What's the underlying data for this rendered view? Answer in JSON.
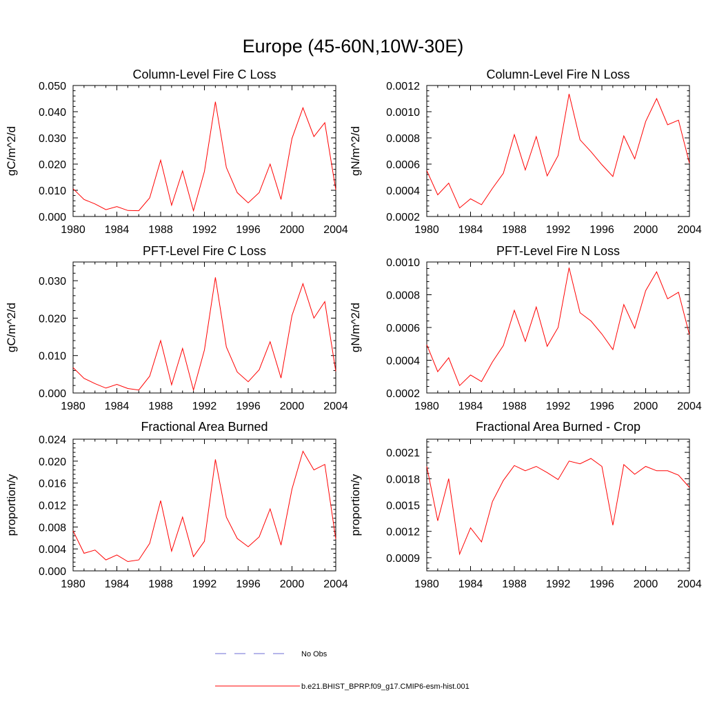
{
  "figure": {
    "title": "Europe (45-60N,10W-30E)"
  },
  "colors": {
    "series": "#ff0000",
    "obs": "#6b6bd6",
    "axis": "#000000"
  },
  "legend": {
    "obs_label": "No Obs",
    "model_label": "b.e21.BHIST_BPRP.f09_g17.CMIP6-esm-hist.001"
  },
  "chart_data": [
    {
      "type": "line",
      "title": "Column-Level Fire C Loss",
      "ylabel": "gC/m^2/d",
      "xlim": [
        1980,
        2004
      ],
      "ylim": [
        0.0,
        0.05
      ],
      "xticks": [
        1980,
        1984,
        1988,
        1992,
        1996,
        2000,
        2004
      ],
      "xtick_labels": [
        "1980",
        "1984",
        "1988",
        "1992",
        "1996",
        "2000",
        "2004"
      ],
      "yticks": [
        0.0,
        0.01,
        0.02,
        0.03,
        0.04,
        0.05
      ],
      "ytick_labels": [
        "0.000",
        "0.010",
        "0.020",
        "0.030",
        "0.040",
        "0.050"
      ],
      "x": [
        1980,
        1981,
        1982,
        1983,
        1984,
        1985,
        1986,
        1987,
        1988,
        1989,
        1990,
        1991,
        1992,
        1993,
        1994,
        1995,
        1996,
        1997,
        1998,
        1999,
        2000,
        2001,
        2002,
        2003,
        2004
      ],
      "series": [
        {
          "name": "b.e21.BHIST_BPRP.f09_g17.CMIP6-esm-hist.001",
          "values": [
            0.0106,
            0.0065,
            0.0048,
            0.0026,
            0.0038,
            0.0023,
            0.0022,
            0.0071,
            0.0215,
            0.0043,
            0.0174,
            0.0022,
            0.0172,
            0.0438,
            0.0187,
            0.0091,
            0.0052,
            0.0091,
            0.02,
            0.0065,
            0.0298,
            0.0415,
            0.0305,
            0.0358,
            0.0102
          ]
        }
      ]
    },
    {
      "type": "line",
      "title": "Column-Level Fire N Loss",
      "ylabel": "gN/m^2/d",
      "xlim": [
        1980,
        2004
      ],
      "ylim": [
        0.0002,
        0.0012
      ],
      "xticks": [
        1980,
        1984,
        1988,
        1992,
        1996,
        2000,
        2004
      ],
      "xtick_labels": [
        "1980",
        "1984",
        "1988",
        "1992",
        "1996",
        "2000",
        "2004"
      ],
      "yticks": [
        0.0002,
        0.0004,
        0.0006,
        0.0008,
        0.001,
        0.0012
      ],
      "ytick_labels": [
        "0.0002",
        "0.0004",
        "0.0006",
        "0.0008",
        "0.0010",
        "0.0012"
      ],
      "x": [
        1980,
        1981,
        1982,
        1983,
        1984,
        1985,
        1986,
        1987,
        1988,
        1989,
        1990,
        1991,
        1992,
        1993,
        1994,
        1995,
        1996,
        1997,
        1998,
        1999,
        2000,
        2004,
        2001,
        2002,
        2003
      ],
      "series": [
        {
          "name": "b.e21.BHIST_BPRP.f09_g17.CMIP6-esm-hist.001",
          "values": [
            0.00055,
            0.000365,
            0.000455,
            0.000265,
            0.000335,
            0.00029,
            0.000415,
            0.00053,
            0.000825,
            0.000555,
            0.00081,
            0.00051,
            0.000665,
            0.001135,
            0.000785,
            0.000695,
            0.000595,
            0.000505,
            0.000815,
            0.00064,
            0.000925,
            0.000605,
            0.0011,
            0.0009,
            0.000935
          ]
        }
      ]
    },
    {
      "type": "line",
      "title": "PFT-Level Fire C Loss",
      "ylabel": "gC/m^2/d",
      "xlim": [
        1980,
        2004
      ],
      "ylim": [
        0.0,
        0.035
      ],
      "xticks": [
        1980,
        1984,
        1988,
        1992,
        1996,
        2000,
        2004
      ],
      "xtick_labels": [
        "1980",
        "1984",
        "1988",
        "1992",
        "1996",
        "2000",
        "2004"
      ],
      "yticks": [
        0.0,
        0.01,
        0.02,
        0.03
      ],
      "ytick_labels": [
        "0.000",
        "0.010",
        "0.020",
        "0.030"
      ],
      "x": [
        1980,
        1981,
        1982,
        1983,
        1984,
        1985,
        1986,
        1987,
        1988,
        1989,
        1990,
        1991,
        1992,
        1993,
        1994,
        1995,
        1996,
        1997,
        1998,
        1999,
        2000,
        2001,
        2002,
        2003,
        2004
      ],
      "series": [
        {
          "name": "b.e21.BHIST_BPRP.f09_g17.CMIP6-esm-hist.001",
          "values": [
            0.0068,
            0.0039,
            0.0025,
            0.0013,
            0.0023,
            0.0012,
            0.0008,
            0.0045,
            0.014,
            0.0022,
            0.0119,
            0.0008,
            0.0115,
            0.0309,
            0.0123,
            0.0056,
            0.003,
            0.0062,
            0.0137,
            0.004,
            0.0207,
            0.0292,
            0.02,
            0.0244,
            0.0058
          ]
        }
      ]
    },
    {
      "type": "line",
      "title": "PFT-Level Fire N Loss",
      "ylabel": "gN/m^2/d",
      "xlim": [
        1980,
        2004
      ],
      "ylim": [
        0.0002,
        0.001
      ],
      "xticks": [
        1980,
        1984,
        1988,
        1992,
        1996,
        2000,
        2004
      ],
      "xtick_labels": [
        "1980",
        "1984",
        "1988",
        "1992",
        "1996",
        "2000",
        "2004"
      ],
      "yticks": [
        0.0002,
        0.0004,
        0.0006,
        0.0008,
        0.001
      ],
      "ytick_labels": [
        "0.0002",
        "0.0004",
        "0.0006",
        "0.0008",
        "0.0010"
      ],
      "x": [
        1980,
        1981,
        1982,
        1983,
        1984,
        1985,
        1986,
        1987,
        1988,
        1989,
        1990,
        1991,
        1992,
        1993,
        1994,
        1995,
        1996,
        1997,
        1998,
        1999,
        2000,
        2001,
        2002,
        2003,
        2004
      ],
      "series": [
        {
          "name": "b.e21.BHIST_BPRP.f09_g17.CMIP6-esm-hist.001",
          "values": [
            0.000495,
            0.00033,
            0.000415,
            0.000245,
            0.00031,
            0.00027,
            0.00039,
            0.00049,
            0.000705,
            0.000515,
            0.000725,
            0.000485,
            0.0006,
            0.000965,
            0.00069,
            0.00064,
            0.00056,
            0.000465,
            0.00074,
            0.000595,
            0.000825,
            0.00094,
            0.000775,
            0.000815,
            0.000555
          ]
        }
      ]
    },
    {
      "type": "line",
      "title": "Fractional Area Burned",
      "ylabel": "proportion/y",
      "xlim": [
        1980,
        2004
      ],
      "ylim": [
        0.0,
        0.024
      ],
      "xticks": [
        1980,
        1984,
        1988,
        1992,
        1996,
        2000,
        2004
      ],
      "xtick_labels": [
        "1980",
        "1984",
        "1988",
        "1992",
        "1996",
        "2000",
        "2004"
      ],
      "yticks": [
        0.0,
        0.004,
        0.008,
        0.012,
        0.016,
        0.02,
        0.024
      ],
      "ytick_labels": [
        "0.000",
        "0.004",
        "0.008",
        "0.012",
        "0.016",
        "0.020",
        "0.024"
      ],
      "x": [
        1980,
        1981,
        1982,
        1983,
        1984,
        1985,
        1986,
        1987,
        1988,
        1989,
        1990,
        1991,
        1992,
        1993,
        1994,
        1995,
        1996,
        1997,
        1998,
        1999,
        2000,
        2001,
        2002,
        2003,
        2004
      ],
      "series": [
        {
          "name": "b.e21.BHIST_BPRP.f09_g17.CMIP6-esm-hist.001",
          "values": [
            0.0073,
            0.0032,
            0.0038,
            0.002,
            0.0029,
            0.0017,
            0.002,
            0.005,
            0.0128,
            0.0036,
            0.0098,
            0.0026,
            0.0054,
            0.0203,
            0.0098,
            0.0059,
            0.0044,
            0.0062,
            0.0113,
            0.0047,
            0.0149,
            0.0218,
            0.0184,
            0.0194,
            0.0058
          ]
        }
      ]
    },
    {
      "type": "line",
      "title": "Fractional Area Burned - Crop",
      "ylabel": "proportion/y",
      "xlim": [
        1980,
        2004
      ],
      "ylim": [
        0.00075,
        0.00225
      ],
      "xticks": [
        1980,
        1984,
        1988,
        1992,
        1996,
        2000,
        2004
      ],
      "xtick_labels": [
        "1980",
        "1984",
        "1988",
        "1992",
        "1996",
        "2000",
        "2004"
      ],
      "yticks": [
        0.0009,
        0.0012,
        0.0015,
        0.0018,
        0.0021
      ],
      "ytick_labels": [
        "0.0009",
        "0.0012",
        "0.0015",
        "0.0018",
        "0.0021"
      ],
      "x": [
        1980,
        1981,
        1982,
        1983,
        1984,
        1985,
        1986,
        1987,
        1988,
        1989,
        1990,
        1991,
        1992,
        1993,
        1994,
        1995,
        1996,
        1997,
        1998,
        1999,
        2000,
        2001,
        2002,
        2003,
        2004
      ],
      "series": [
        {
          "name": "b.e21.BHIST_BPRP.f09_g17.CMIP6-esm-hist.001",
          "values": [
            0.00194,
            0.00132,
            0.0018,
            0.00094,
            0.00124,
            0.00108,
            0.00154,
            0.00178,
            0.00195,
            0.00189,
            0.00194,
            0.00187,
            0.00179,
            0.002,
            0.00197,
            0.00203,
            0.00194,
            0.00127,
            0.00196,
            0.00185,
            0.00194,
            0.00189,
            0.00189,
            0.00184,
            0.0017
          ]
        }
      ]
    }
  ]
}
